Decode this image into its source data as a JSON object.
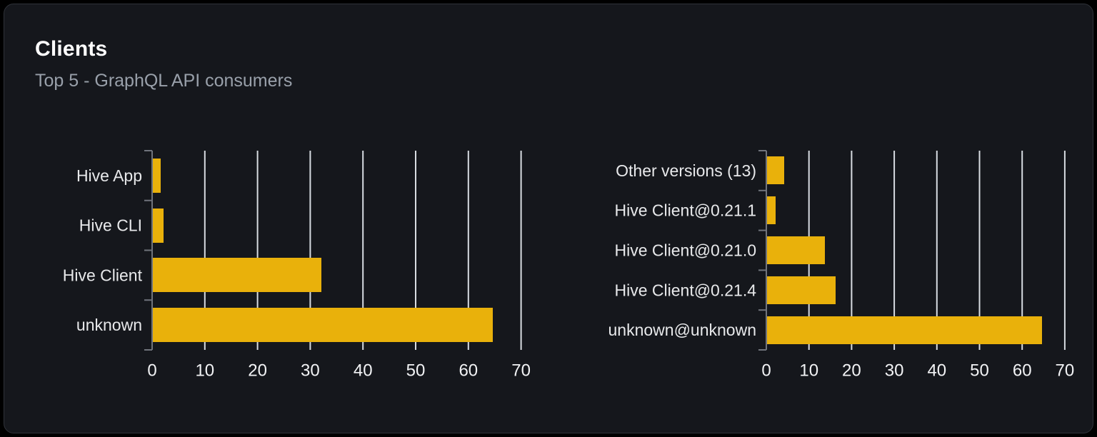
{
  "card": {
    "title": "Clients",
    "subtitle": "Top 5 - GraphQL API consumers"
  },
  "colors": {
    "page_bg": "#000000",
    "card_bg": "#15171c",
    "card_border": "#2f3239",
    "title": "#ffffff",
    "subtitle": "#99a0aa",
    "bar": "#e9b10b",
    "grid_line": "#d8dce2",
    "axis_line": "#70747c",
    "category_label": "#e8e9eb",
    "tick_label": "#f2f3f5"
  },
  "chart_data": [
    {
      "type": "bar",
      "orientation": "horizontal",
      "name": "clients-by-name",
      "categories": [
        "Hive App",
        "Hive CLI",
        "Hive Client",
        "unknown"
      ],
      "values": [
        1.5,
        2,
        32,
        64.5
      ],
      "xlim": [
        0,
        70
      ],
      "xticks": [
        0,
        10,
        20,
        30,
        40,
        50,
        60,
        70
      ],
      "grid": true,
      "legend": false
    },
    {
      "type": "bar",
      "orientation": "horizontal",
      "name": "clients-by-version",
      "categories": [
        "Other versions (13)",
        "Hive Client@0.21.1",
        "Hive Client@0.21.0",
        "Hive Client@0.21.4",
        "unknown@unknown"
      ],
      "values": [
        4,
        2,
        13.5,
        16,
        64.5
      ],
      "xlim": [
        0,
        70
      ],
      "xticks": [
        0,
        10,
        20,
        30,
        40,
        50,
        60,
        70
      ],
      "grid": true,
      "legend": false
    }
  ]
}
